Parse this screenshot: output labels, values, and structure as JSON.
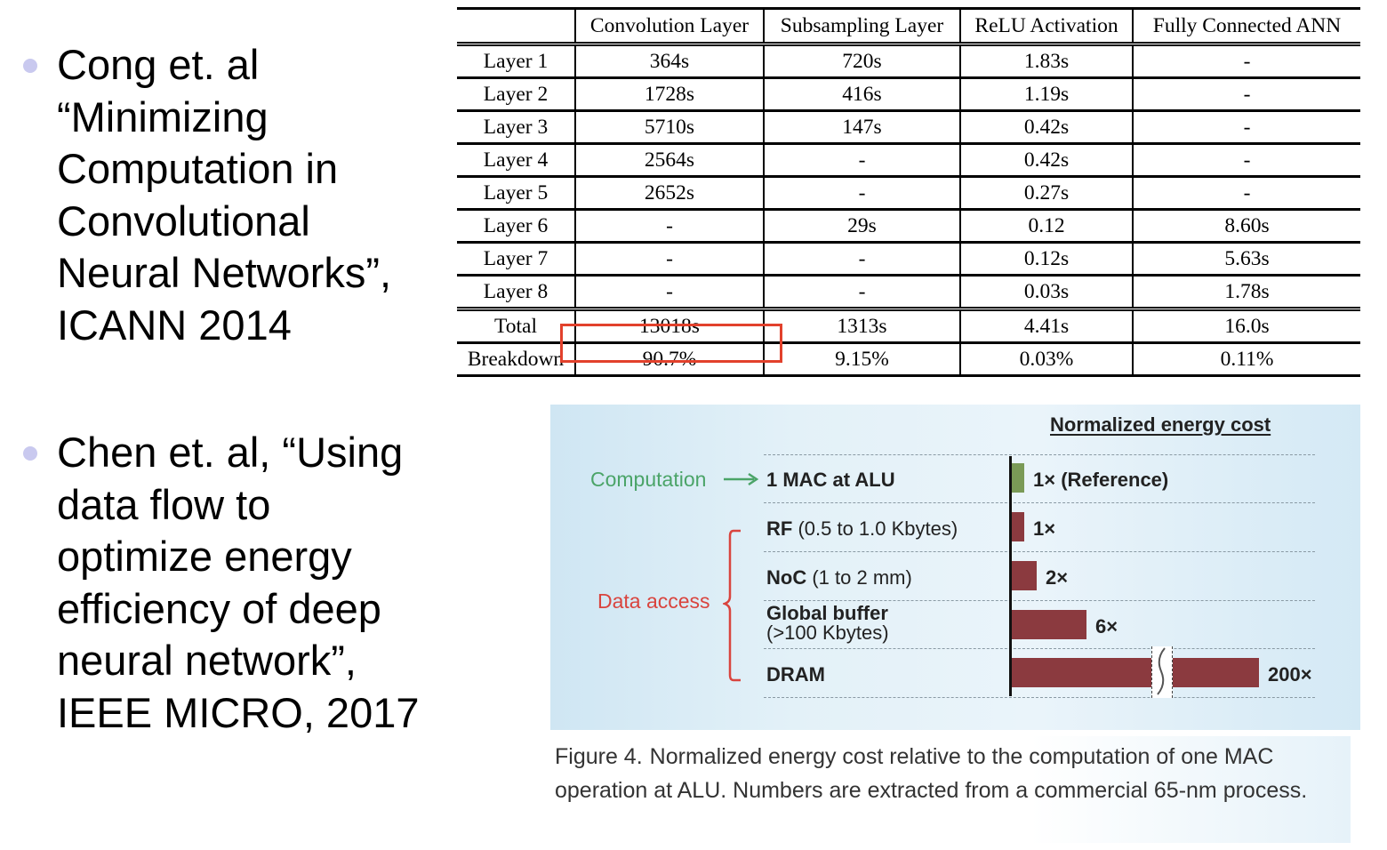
{
  "bullets": [
    {
      "lines": [
        "Cong et. al",
        "“Minimizing",
        "Computation in",
        "Convolutional",
        "Neural Networks”,",
        "ICANN 2014"
      ]
    },
    {
      "lines": [
        "Chen et. al, “Using",
        "data flow to",
        "optimize energy",
        "efficiency of deep",
        "neural network”,",
        "IEEE MICRO, 2017"
      ]
    }
  ],
  "table": {
    "headers": [
      "",
      "Convolution Layer",
      "Subsampling Layer",
      "ReLU Activation",
      "Fully Connected ANN"
    ],
    "rows": [
      [
        "Layer 1",
        "364s",
        "720s",
        "1.83s",
        "-"
      ],
      [
        "Layer 2",
        "1728s",
        "416s",
        "1.19s",
        "-"
      ],
      [
        "Layer 3",
        "5710s",
        "147s",
        "0.42s",
        "-"
      ],
      [
        "Layer 4",
        "2564s",
        "-",
        "0.42s",
        "-"
      ],
      [
        "Layer 5",
        "2652s",
        "-",
        "0.27s",
        "-"
      ],
      [
        "Layer 6",
        "-",
        "29s",
        "0.12",
        "8.60s"
      ],
      [
        "Layer 7",
        "-",
        "-",
        "0.12s",
        "5.63s"
      ],
      [
        "Layer 8",
        "-",
        "-",
        "0.03s",
        "1.78s"
      ]
    ],
    "summary": [
      [
        "Total",
        "13018s",
        "1313s",
        "4.41s",
        "16.0s"
      ],
      [
        "Breakdown",
        "90.7%",
        "9.15%",
        "0.03%",
        "0.11%"
      ]
    ]
  },
  "figure": {
    "title": "Normalized energy cost",
    "computation_label": "Computation",
    "data_access_label": "Data access",
    "rows": [
      {
        "name": "1 MAC at ALU",
        "detail": "",
        "value_label": "1× (Reference)",
        "value": 1,
        "color": "#7a9a56"
      },
      {
        "name": "RF",
        "detail": "(0.5 to 1.0 Kbytes)",
        "value_label": "1×",
        "value": 1,
        "color": "#8b3a3f"
      },
      {
        "name": "NoC",
        "detail": "(1 to 2 mm)",
        "value_label": "2×",
        "value": 2,
        "color": "#8b3a3f"
      },
      {
        "name": "Global buffer",
        "detail": "(>100 Kbytes)",
        "value_label": "6×",
        "value": 6,
        "color": "#8b3a3f"
      },
      {
        "name": "DRAM",
        "detail": "",
        "value_label": "200×",
        "value": 200,
        "color": "#8b3a3f"
      }
    ],
    "caption_lead": "Figure 4.",
    "caption_body": "Normalized energy cost relative to the computation of one MAC operation at ALU. Numbers are extracted from a commercial 65-nm process."
  },
  "colors": {
    "highlight": "#e2412c",
    "computation": "#4ba468",
    "data_access": "#d9443e",
    "bullet_dot": "#c9c9ef"
  }
}
